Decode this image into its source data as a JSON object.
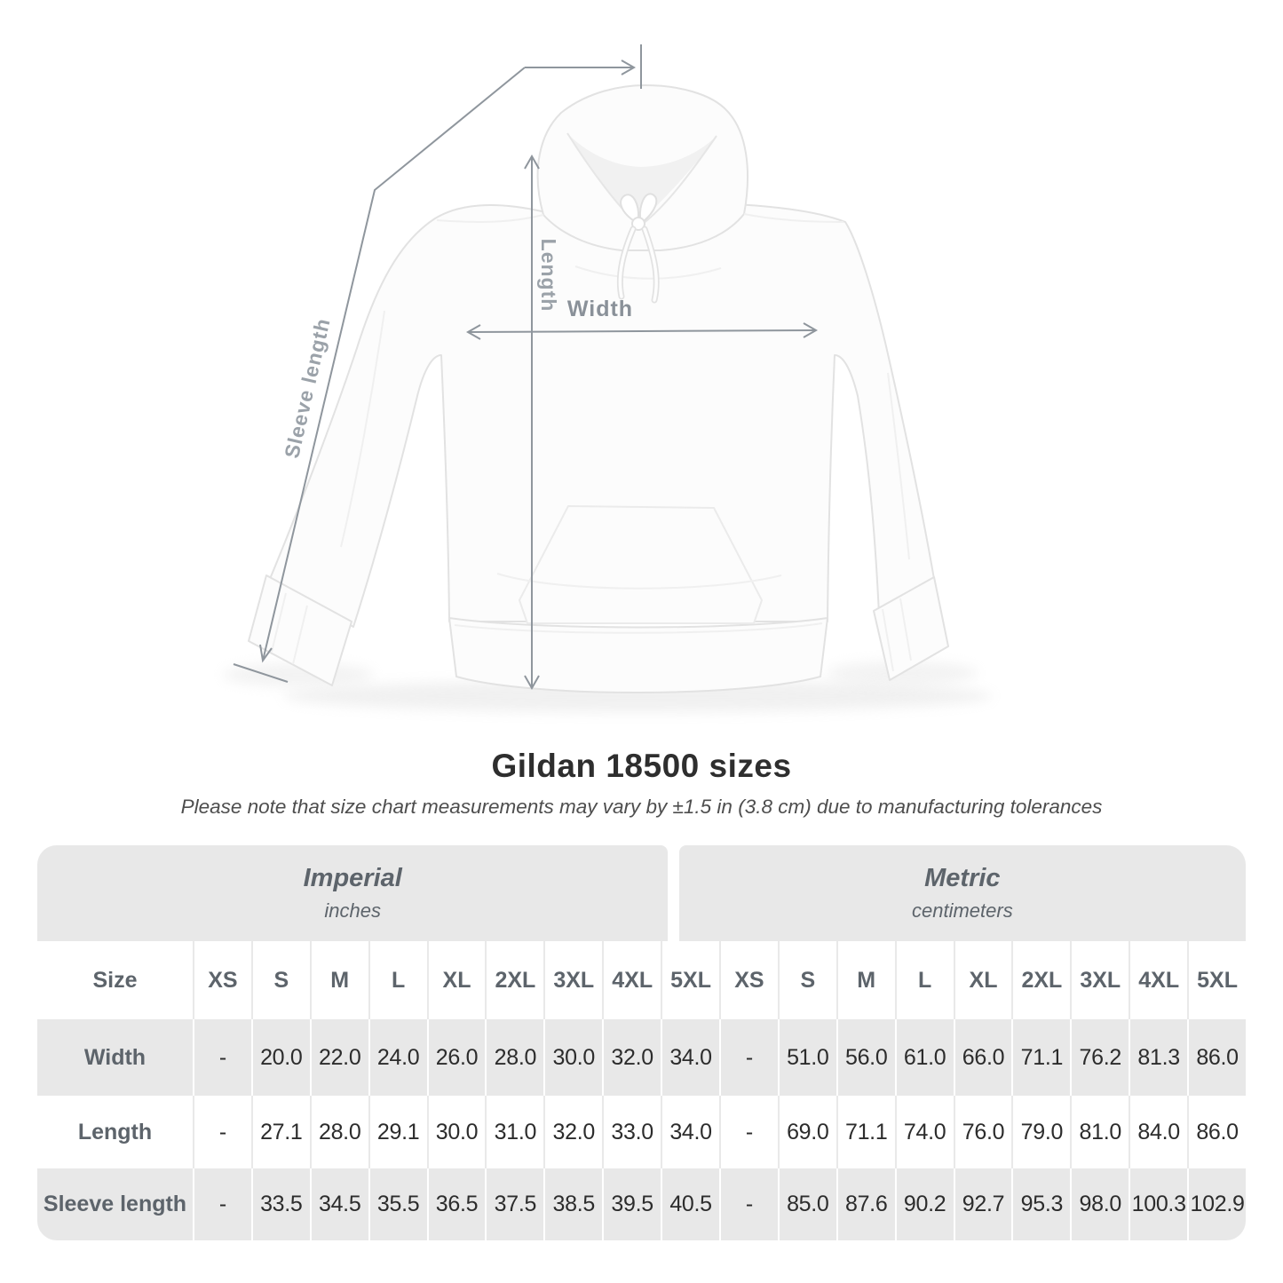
{
  "diagram": {
    "length_label": "Length",
    "width_label": "Width",
    "sleeve_label": "Sleeve length"
  },
  "header": {
    "title": "Gildan 18500 sizes",
    "subtitle": "Please note that size chart measurements may vary by ±1.5 in (3.8 cm) due to manufacturing tolerances"
  },
  "table": {
    "size_label": "Size",
    "sections": {
      "imperial": {
        "name": "Imperial",
        "unit": "inches"
      },
      "metric": {
        "name": "Metric",
        "unit": "centimeters"
      }
    },
    "sizes": [
      "XS",
      "S",
      "M",
      "L",
      "XL",
      "2XL",
      "3XL",
      "4XL",
      "5XL"
    ],
    "rows": [
      {
        "label": "Width",
        "imperial": [
          "-",
          "20.0",
          "22.0",
          "24.0",
          "26.0",
          "28.0",
          "30.0",
          "32.0",
          "34.0"
        ],
        "metric": [
          "-",
          "51.0",
          "56.0",
          "61.0",
          "66.0",
          "71.1",
          "76.2",
          "81.3",
          "86.0"
        ]
      },
      {
        "label": "Length",
        "imperial": [
          "-",
          "27.1",
          "28.0",
          "29.1",
          "30.0",
          "31.0",
          "32.0",
          "33.0",
          "34.0"
        ],
        "metric": [
          "-",
          "69.0",
          "71.1",
          "74.0",
          "76.0",
          "79.0",
          "81.0",
          "84.0",
          "86.0"
        ]
      },
      {
        "label": "Sleeve length",
        "imperial": [
          "-",
          "33.5",
          "34.5",
          "35.5",
          "36.5",
          "37.5",
          "38.5",
          "39.5",
          "40.5"
        ],
        "metric": [
          "-",
          "85.0",
          "87.6",
          "90.2",
          "92.7",
          "95.3",
          "98.0",
          "100.3",
          "102.9"
        ]
      }
    ]
  },
  "colors": {
    "band_gray": "#e8e8e8",
    "annotation_line": "#8f969d",
    "annotation_text": "#9ba2a9",
    "header_text": "#5d646b",
    "value_text": "#2c2c2c"
  }
}
